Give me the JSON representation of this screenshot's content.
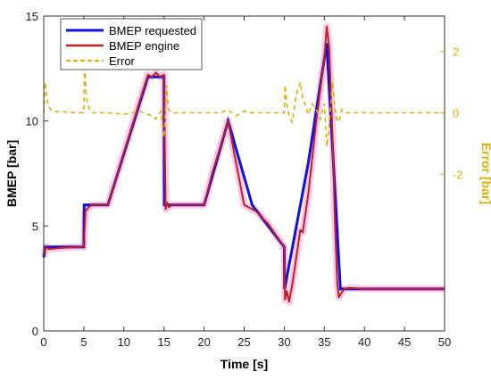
{
  "chart_data": {
    "type": "line",
    "xlabel": "Time [s]",
    "ylabel": "BMEP [bar]",
    "y2label": "Error [bar]",
    "xlim": [
      0,
      50
    ],
    "ylim": [
      0,
      15
    ],
    "y2lim": [
      -2,
      2
    ],
    "x_ticks": [
      0,
      5,
      10,
      15,
      20,
      25,
      30,
      35,
      40,
      45,
      50
    ],
    "y_ticks": [
      0,
      5,
      10,
      15
    ],
    "y2_ticks": [
      -2,
      0,
      2
    ],
    "legend_position": "top-left",
    "grid": false,
    "colors": {
      "requested": "#1010e0",
      "engine": "#c0201a",
      "error": "#d9b100",
      "right_axis": "#d9b100",
      "engine_halo": "#f4a6e8"
    },
    "series": [
      {
        "name": "BMEP requested",
        "axis": "left",
        "style": "solid",
        "x": [
          0,
          0.2,
          5,
          5.05,
          8,
          13,
          15,
          15.05,
          20,
          23,
          26,
          30,
          30.05,
          33,
          35.3,
          37,
          37.05,
          50
        ],
        "y": [
          3.5,
          4,
          4,
          6,
          6,
          12.1,
          12.1,
          6,
          6,
          10,
          6,
          4,
          2,
          8,
          13.7,
          2,
          2,
          2
        ]
      },
      {
        "name": "BMEP engine",
        "axis": "left",
        "style": "solid",
        "x": [
          0,
          0.3,
          0.6,
          2,
          4,
          5,
          5.2,
          5.6,
          6,
          7,
          8,
          10,
          12,
          13,
          13.5,
          14,
          14.5,
          15,
          15.2,
          15.4,
          15.6,
          16,
          17,
          18,
          20,
          21,
          23,
          24,
          25,
          26,
          26.5,
          28,
          30,
          30.1,
          30.3,
          30.6,
          31,
          31.5,
          32,
          32.3,
          33,
          34,
          35,
          35.3,
          35.6,
          36,
          36.3,
          36.6,
          36.8,
          37.1,
          37.5,
          38,
          40,
          45,
          50
        ],
        "y": [
          3.6,
          4,
          3.9,
          3.95,
          4,
          4,
          5.7,
          5.9,
          6,
          6,
          6,
          8.5,
          11,
          12.2,
          12.1,
          12.3,
          12.1,
          12.2,
          5.8,
          6.1,
          5.9,
          6,
          6,
          6,
          6,
          7.5,
          10,
          8,
          6,
          5.8,
          5.7,
          5.1,
          4,
          1.5,
          1.9,
          1.4,
          2.2,
          3.5,
          4.8,
          4.7,
          6.5,
          10,
          13,
          14.5,
          13.5,
          9.5,
          5.5,
          2.3,
          1.6,
          1.8,
          2,
          2.05,
          2,
          2,
          2
        ]
      },
      {
        "name": "Error",
        "axis": "right",
        "style": "dashed",
        "x": [
          0,
          0.2,
          0.5,
          1,
          5,
          5.1,
          5.3,
          5.7,
          6,
          8,
          10,
          12,
          13.5,
          14,
          14.6,
          15,
          15.1,
          15.3,
          15.6,
          16,
          18,
          20,
          22,
          23,
          24,
          25,
          26,
          28,
          30,
          30.1,
          30.3,
          30.6,
          31,
          31.5,
          32,
          32.3,
          32.7,
          33,
          33.5,
          34,
          34.5,
          35,
          35.3,
          35.6,
          36,
          36.3,
          36.6,
          36.9,
          37.2,
          37.6,
          38,
          40,
          45,
          50
        ],
        "y": [
          0,
          1,
          0.3,
          0.05,
          0,
          1.6,
          0.5,
          0.1,
          0,
          0,
          -0.05,
          0.05,
          -0.1,
          -0.2,
          0.05,
          -0.8,
          -0.4,
          0.9,
          0.1,
          0,
          0,
          0,
          0,
          0.1,
          -0.1,
          0.05,
          0,
          0,
          0,
          0.9,
          0.3,
          -0.1,
          -0.3,
          0.6,
          1,
          0.5,
          0.2,
          -0.05,
          0.3,
          0.1,
          -0.2,
          0.3,
          -1.1,
          -0.4,
          1,
          0.2,
          -0.3,
          -0.2,
          0.1,
          0,
          0,
          0,
          0,
          0
        ]
      }
    ]
  }
}
